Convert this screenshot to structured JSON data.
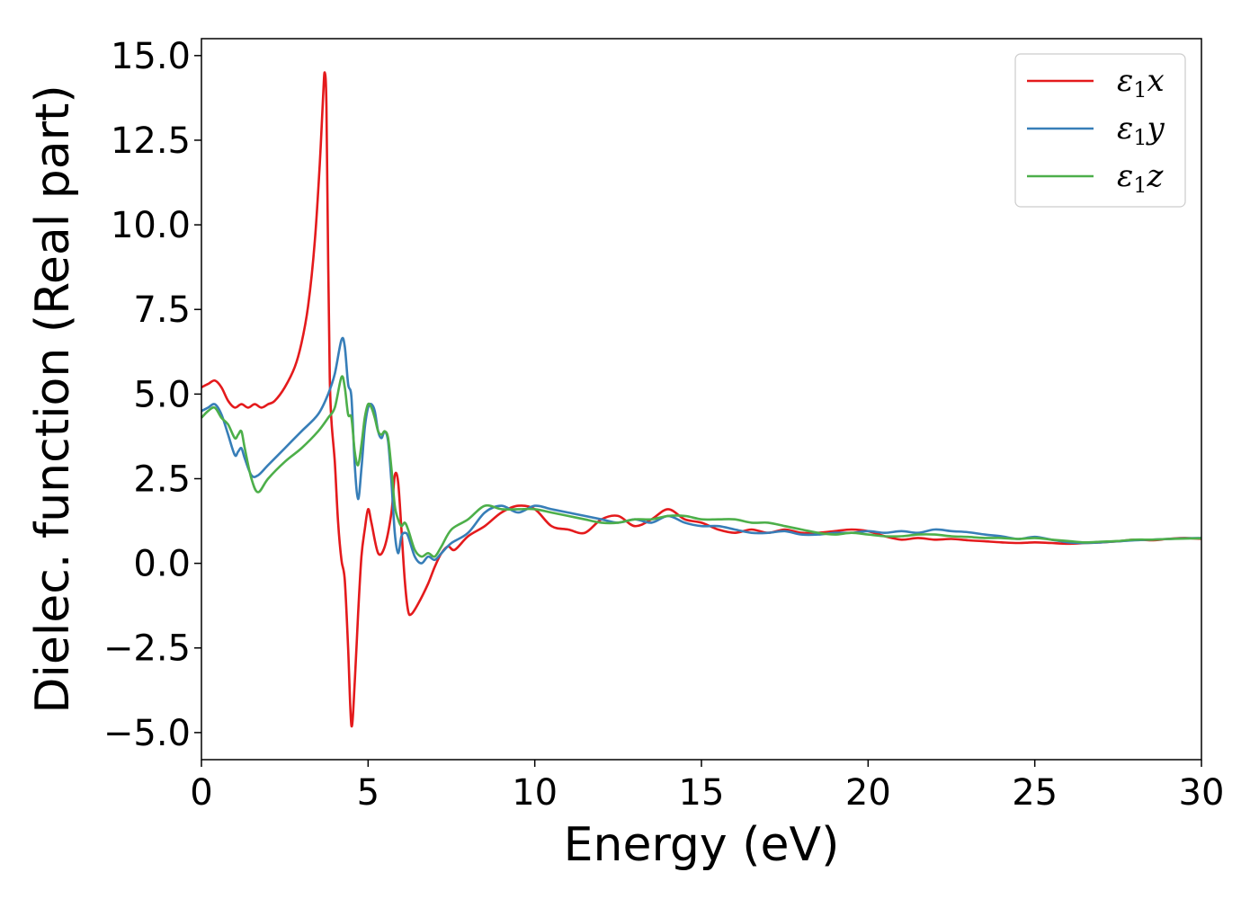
{
  "chart_data": {
    "type": "line",
    "title": "",
    "xlabel": "Energy (eV)",
    "ylabel": "Dielec. function (Real part)",
    "xlim": [
      0,
      30
    ],
    "ylim": [
      -5.8,
      15.5
    ],
    "xticks": [
      0,
      5,
      10,
      15,
      20,
      25,
      30
    ],
    "xtick_labels": [
      "0",
      "5",
      "10",
      "15",
      "20",
      "25",
      "30"
    ],
    "yticks": [
      -5.0,
      -2.5,
      0.0,
      2.5,
      5.0,
      7.5,
      10.0,
      12.5,
      15.0
    ],
    "ytick_labels": [
      "−5.0",
      "−2.5",
      "0.0",
      "2.5",
      "5.0",
      "7.5",
      "10.0",
      "12.5",
      "15.0"
    ],
    "grid": false,
    "legend_position": "top-right",
    "series": [
      {
        "name": "ε1x",
        "legend_symbol": "ε",
        "legend_sub": "1",
        "legend_var": "x",
        "color": "#e41a1c",
        "x": [
          0,
          0.2,
          0.4,
          0.6,
          0.8,
          1.0,
          1.2,
          1.4,
          1.6,
          1.8,
          2.0,
          2.2,
          2.5,
          2.8,
          3.0,
          3.2,
          3.4,
          3.55,
          3.65,
          3.7,
          3.75,
          3.8,
          3.85,
          3.9,
          4.0,
          4.1,
          4.2,
          4.3,
          4.4,
          4.5,
          4.6,
          4.7,
          4.8,
          4.9,
          5.0,
          5.1,
          5.3,
          5.5,
          5.7,
          5.8,
          5.9,
          6.0,
          6.1,
          6.2,
          6.3,
          6.5,
          6.8,
          7.0,
          7.2,
          7.4,
          7.6,
          8.0,
          8.5,
          9.0,
          9.5,
          10.0,
          10.5,
          11.0,
          11.5,
          12.0,
          12.5,
          13.0,
          13.5,
          14.0,
          14.5,
          15.0,
          15.5,
          16.0,
          16.5,
          17.0,
          17.5,
          18.0,
          18.5,
          19.0,
          19.5,
          20.0,
          20.5,
          21.0,
          21.5,
          22.0,
          22.5,
          23.0,
          23.5,
          24.0,
          24.5,
          25.0,
          25.5,
          26.0,
          26.5,
          27.0,
          27.5,
          28.0,
          28.5,
          29.0,
          29.5,
          30.0
        ],
        "y": [
          5.2,
          5.3,
          5.4,
          5.2,
          4.8,
          4.6,
          4.7,
          4.6,
          4.7,
          4.6,
          4.7,
          4.8,
          5.2,
          5.8,
          6.5,
          7.6,
          9.5,
          11.8,
          13.8,
          14.5,
          13.5,
          9.0,
          5.5,
          4.2,
          3.0,
          1.2,
          0.1,
          -0.5,
          -2.5,
          -4.8,
          -3.5,
          -1.5,
          0.2,
          1.0,
          1.6,
          1.2,
          0.3,
          0.5,
          1.5,
          2.6,
          2.4,
          1.0,
          -0.5,
          -1.4,
          -1.5,
          -1.2,
          -0.6,
          -0.1,
          0.3,
          0.5,
          0.4,
          0.8,
          1.1,
          1.5,
          1.7,
          1.6,
          1.1,
          1.0,
          0.9,
          1.3,
          1.4,
          1.1,
          1.3,
          1.6,
          1.3,
          1.2,
          1.0,
          0.9,
          1.0,
          0.9,
          1.0,
          0.9,
          0.9,
          0.95,
          1.0,
          0.95,
          0.8,
          0.7,
          0.75,
          0.7,
          0.72,
          0.68,
          0.65,
          0.62,
          0.6,
          0.62,
          0.6,
          0.58,
          0.6,
          0.62,
          0.65,
          0.7,
          0.68,
          0.72,
          0.75,
          0.72
        ]
      },
      {
        "name": "ε1y",
        "legend_symbol": "ε",
        "legend_sub": "1",
        "legend_var": "y",
        "color": "#377eb8",
        "x": [
          0,
          0.2,
          0.4,
          0.6,
          0.8,
          1.0,
          1.1,
          1.2,
          1.3,
          1.5,
          1.7,
          2.0,
          2.5,
          3.0,
          3.5,
          3.8,
          4.0,
          4.2,
          4.3,
          4.4,
          4.5,
          4.6,
          4.7,
          4.8,
          4.9,
          5.0,
          5.1,
          5.2,
          5.3,
          5.4,
          5.5,
          5.6,
          5.7,
          5.8,
          5.9,
          6.0,
          6.1,
          6.2,
          6.4,
          6.6,
          6.8,
          7.0,
          7.2,
          7.5,
          8.0,
          8.5,
          9.0,
          9.5,
          10.0,
          10.5,
          11.0,
          11.5,
          12.0,
          12.5,
          13.0,
          13.5,
          14.0,
          14.5,
          15.0,
          15.5,
          16.0,
          16.5,
          17.0,
          17.5,
          18.0,
          18.5,
          19.0,
          19.5,
          20.0,
          20.5,
          21.0,
          21.5,
          22.0,
          22.5,
          23.0,
          23.5,
          24.0,
          24.5,
          25.0,
          25.5,
          26.0,
          26.5,
          27.0,
          27.5,
          28.0,
          28.5,
          29.0,
          29.5,
          30.0
        ],
        "y": [
          4.5,
          4.6,
          4.7,
          4.4,
          3.8,
          3.2,
          3.3,
          3.4,
          3.1,
          2.6,
          2.6,
          2.9,
          3.4,
          3.9,
          4.4,
          5.0,
          5.6,
          6.6,
          6.4,
          5.3,
          4.9,
          2.9,
          1.9,
          2.8,
          4.0,
          4.6,
          4.7,
          4.5,
          3.9,
          3.7,
          3.9,
          3.6,
          2.4,
          0.9,
          0.3,
          0.8,
          0.9,
          0.8,
          0.2,
          0.0,
          0.2,
          0.1,
          0.3,
          0.6,
          0.9,
          1.5,
          1.7,
          1.5,
          1.7,
          1.6,
          1.5,
          1.4,
          1.3,
          1.2,
          1.3,
          1.2,
          1.4,
          1.2,
          1.1,
          1.1,
          1.0,
          0.9,
          0.9,
          0.95,
          0.85,
          0.85,
          0.9,
          0.9,
          0.95,
          0.9,
          0.95,
          0.9,
          1.0,
          0.95,
          0.92,
          0.85,
          0.8,
          0.72,
          0.78,
          0.7,
          0.62,
          0.6,
          0.62,
          0.65,
          0.68,
          0.7,
          0.72,
          0.74,
          0.75
        ]
      },
      {
        "name": "ε1z",
        "legend_symbol": "ε",
        "legend_sub": "1",
        "legend_var": "z",
        "color": "#4daf4a",
        "x": [
          0,
          0.2,
          0.4,
          0.6,
          0.8,
          1.0,
          1.1,
          1.2,
          1.3,
          1.5,
          1.7,
          2.0,
          2.5,
          3.0,
          3.5,
          3.8,
          4.0,
          4.2,
          4.3,
          4.4,
          4.5,
          4.6,
          4.7,
          4.8,
          4.9,
          5.0,
          5.1,
          5.2,
          5.3,
          5.4,
          5.5,
          5.6,
          5.7,
          5.8,
          5.9,
          6.0,
          6.1,
          6.2,
          6.4,
          6.6,
          6.8,
          7.0,
          7.2,
          7.5,
          8.0,
          8.5,
          9.0,
          9.5,
          10.0,
          10.5,
          11.0,
          11.5,
          12.0,
          12.5,
          13.0,
          13.5,
          14.0,
          14.5,
          15.0,
          15.5,
          16.0,
          16.5,
          17.0,
          17.5,
          18.0,
          18.5,
          19.0,
          19.5,
          20.0,
          20.5,
          21.0,
          21.5,
          22.0,
          22.5,
          23.0,
          23.5,
          24.0,
          24.5,
          25.0,
          25.5,
          26.0,
          26.5,
          27.0,
          27.5,
          28.0,
          28.5,
          29.0,
          29.5,
          30.0
        ],
        "y": [
          4.3,
          4.5,
          4.6,
          4.3,
          4.1,
          3.7,
          3.8,
          3.9,
          3.4,
          2.5,
          2.1,
          2.5,
          3.0,
          3.4,
          3.9,
          4.3,
          4.6,
          5.5,
          5.2,
          4.4,
          4.3,
          3.3,
          2.9,
          3.5,
          4.3,
          4.7,
          4.6,
          4.3,
          3.9,
          3.8,
          3.9,
          3.7,
          2.8,
          1.7,
          1.3,
          1.1,
          1.2,
          1.0,
          0.4,
          0.2,
          0.3,
          0.2,
          0.5,
          1.0,
          1.3,
          1.7,
          1.6,
          1.6,
          1.6,
          1.5,
          1.4,
          1.3,
          1.2,
          1.2,
          1.3,
          1.3,
          1.4,
          1.4,
          1.3,
          1.3,
          1.3,
          1.2,
          1.2,
          1.1,
          1.0,
          0.9,
          0.85,
          0.9,
          0.85,
          0.8,
          0.8,
          0.85,
          0.85,
          0.8,
          0.78,
          0.75,
          0.75,
          0.72,
          0.75,
          0.7,
          0.66,
          0.62,
          0.64,
          0.66,
          0.7,
          0.7,
          0.72,
          0.73,
          0.74
        ]
      }
    ]
  }
}
